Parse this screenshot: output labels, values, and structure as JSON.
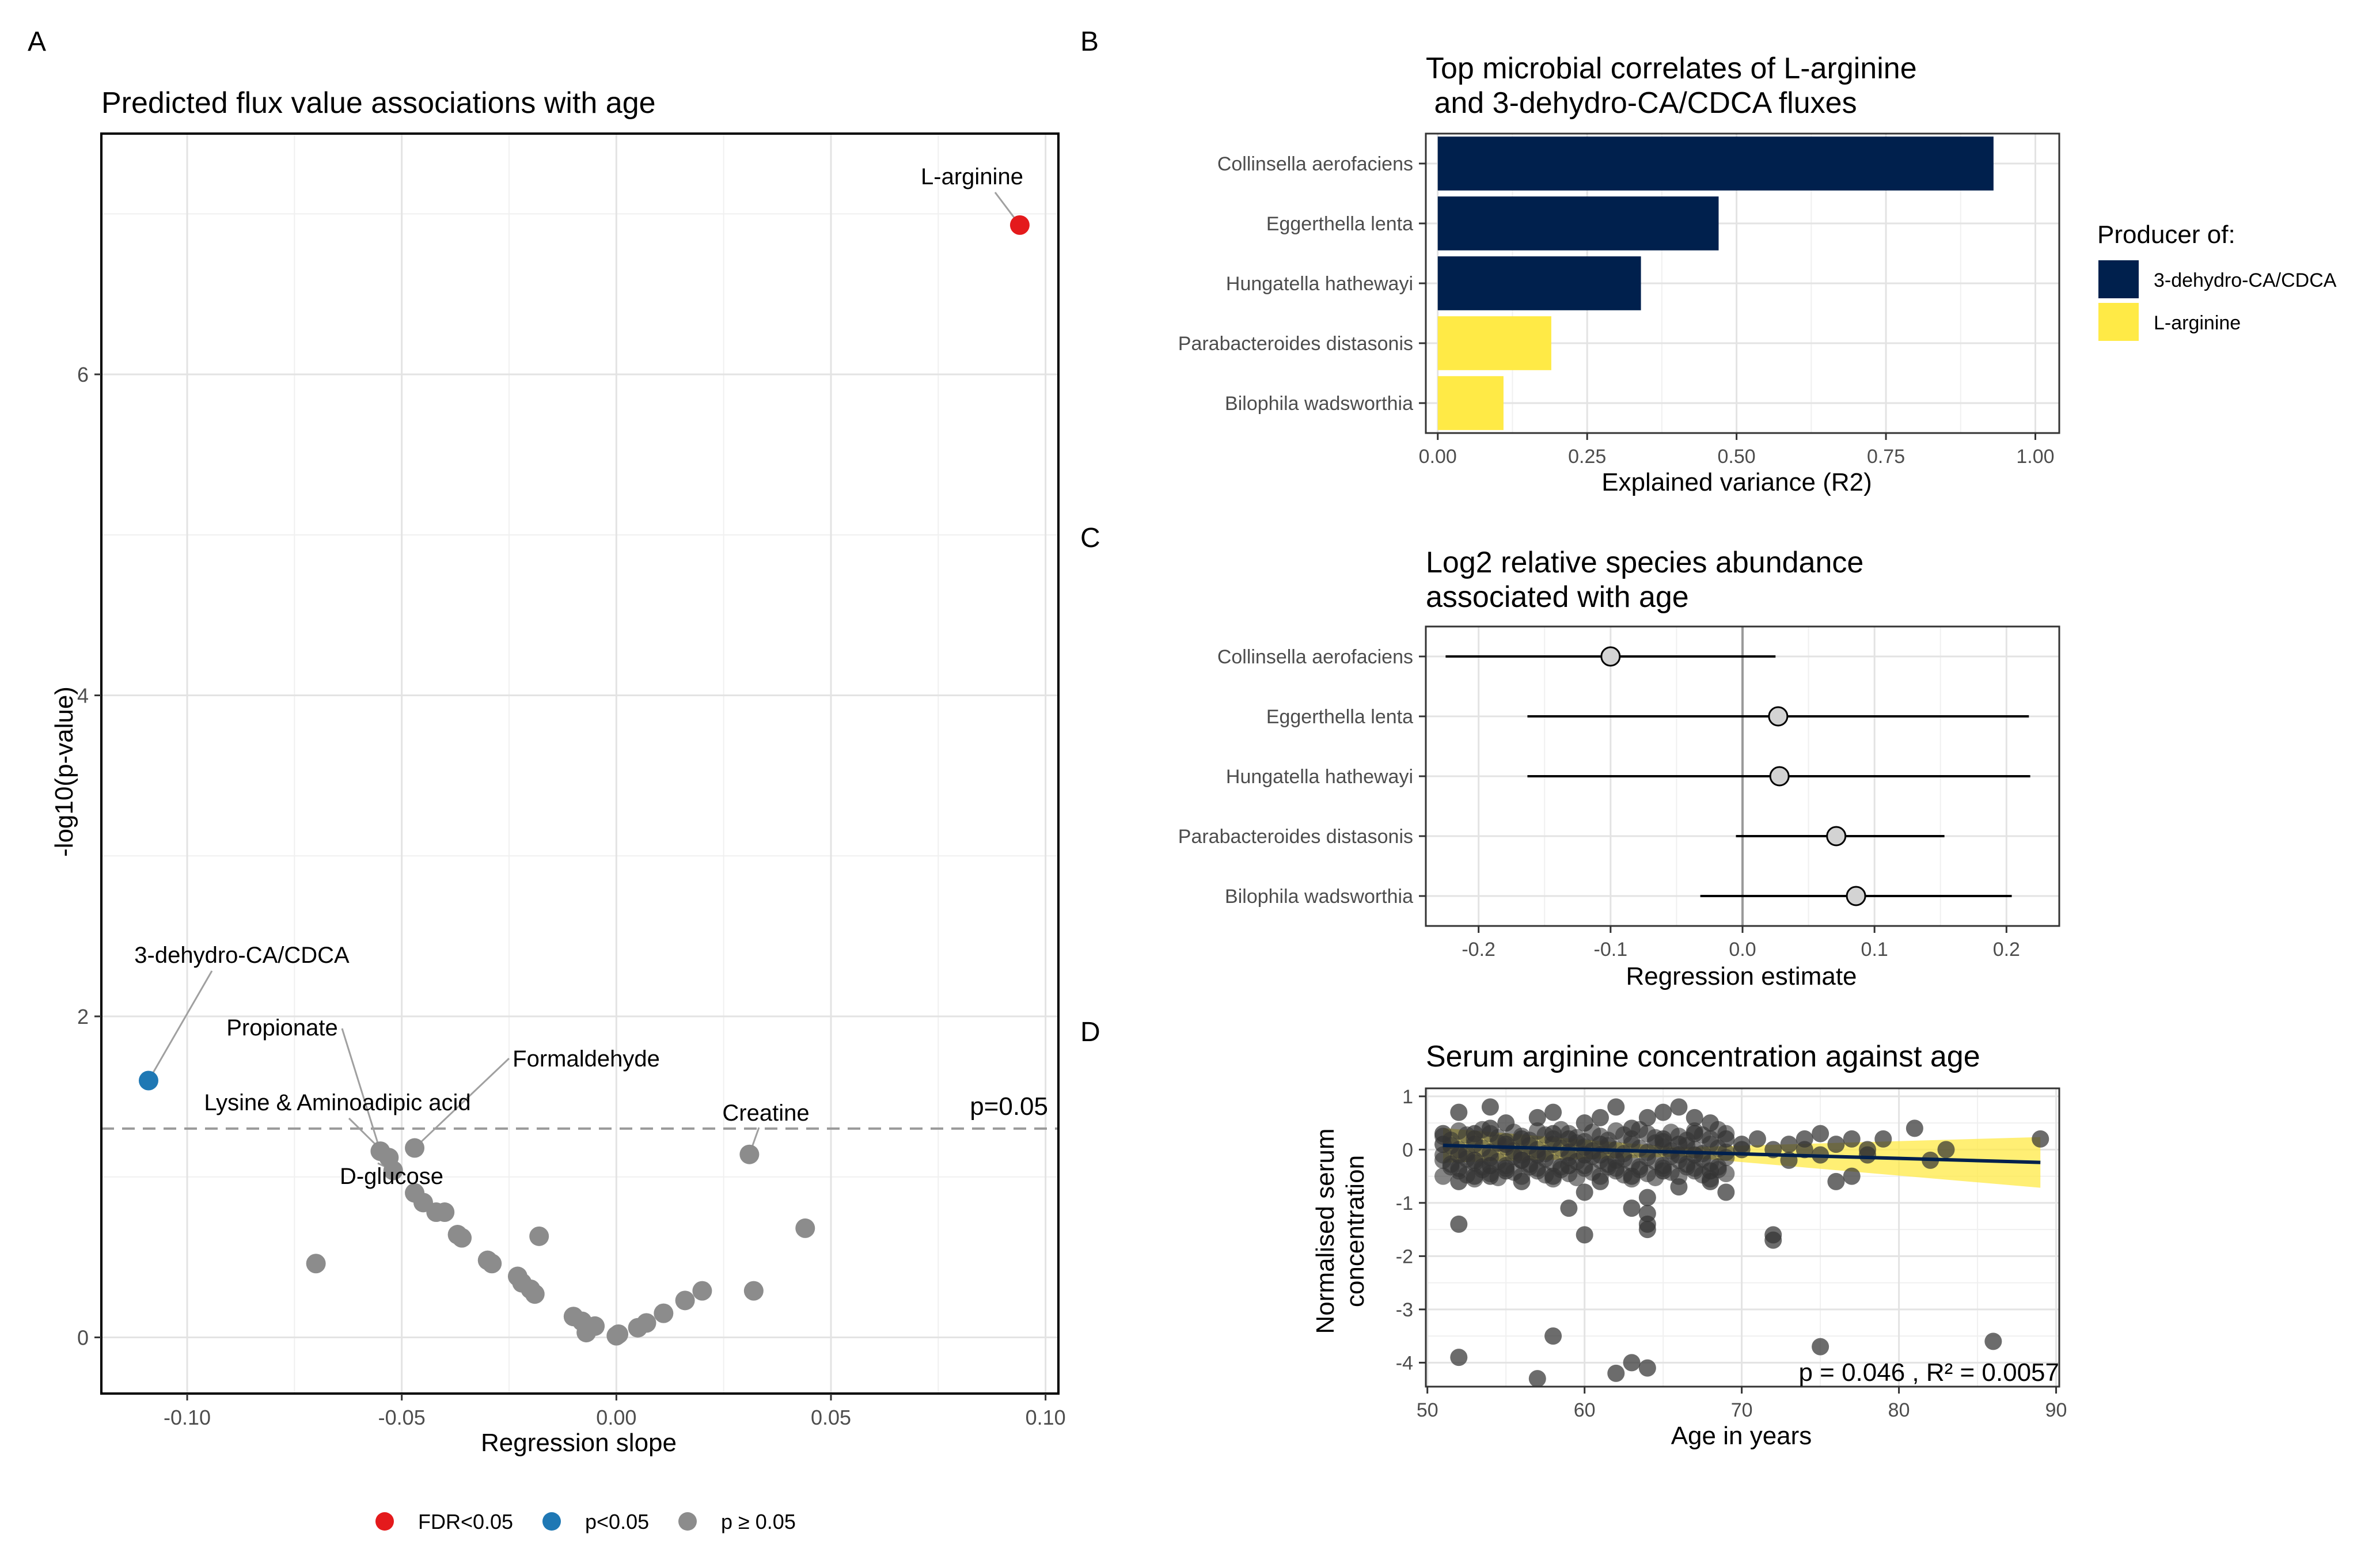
{
  "panels": {
    "A": "A",
    "B": "B",
    "C": "C",
    "D": "D"
  },
  "chart_data": [
    {
      "id": "A",
      "type": "scatter",
      "title": "Predicted flux value associations with age",
      "xlabel": "Regression slope",
      "ylabel": "-log10(p-value)",
      "xlim": [
        -0.12,
        0.103
      ],
      "ylim": [
        -0.35,
        7.5
      ],
      "xticks": [
        -0.1,
        -0.05,
        0.0,
        0.05,
        0.1
      ],
      "xtick_labels": [
        "-0.10",
        "-0.05",
        "0.00",
        "0.05",
        "0.10"
      ],
      "yticks": [
        0,
        2,
        4,
        6
      ],
      "ytick_labels": [
        "0",
        "2",
        "4",
        "6"
      ],
      "grid": true,
      "threshold": {
        "y": 1.301,
        "label": "p=0.05"
      },
      "colors": {
        "fdr": "#e41a1c",
        "p": "#1f78b4",
        "ns": "#8c8c8c"
      },
      "legend": {
        "position": "bottom",
        "items": [
          {
            "label": "FDR<0.05",
            "color": "#e41a1c"
          },
          {
            "label": "p<0.05",
            "color": "#1f78b4"
          },
          {
            "label": "p ≥ 0.05",
            "color": "#8c8c8c"
          }
        ]
      },
      "points": [
        {
          "x": 0.094,
          "y": 6.93,
          "group": "fdr",
          "label": "L-arginine"
        },
        {
          "x": -0.109,
          "y": 1.6,
          "group": "p",
          "label": "3-dehydro-CA/CDCA"
        },
        {
          "x": -0.055,
          "y": 1.16,
          "group": "ns",
          "label": "Propionate"
        },
        {
          "x": -0.047,
          "y": 1.18,
          "group": "ns",
          "label": "Formaldehyde"
        },
        {
          "x": -0.053,
          "y": 1.12,
          "group": "ns",
          "label": "Lysine & Aminoadipic acid"
        },
        {
          "x": -0.052,
          "y": 1.04,
          "group": "ns",
          "label": "D-glucose"
        },
        {
          "x": 0.031,
          "y": 1.14,
          "group": "ns",
          "label": "Creatine"
        },
        {
          "x": -0.07,
          "y": 0.46,
          "group": "ns"
        },
        {
          "x": -0.047,
          "y": 0.9,
          "group": "ns"
        },
        {
          "x": -0.045,
          "y": 0.84,
          "group": "ns"
        },
        {
          "x": -0.042,
          "y": 0.78,
          "group": "ns"
        },
        {
          "x": -0.04,
          "y": 0.78,
          "group": "ns"
        },
        {
          "x": -0.037,
          "y": 0.64,
          "group": "ns"
        },
        {
          "x": -0.036,
          "y": 0.62,
          "group": "ns"
        },
        {
          "x": -0.03,
          "y": 0.48,
          "group": "ns"
        },
        {
          "x": -0.029,
          "y": 0.46,
          "group": "ns"
        },
        {
          "x": -0.023,
          "y": 0.38,
          "group": "ns"
        },
        {
          "x": -0.022,
          "y": 0.34,
          "group": "ns"
        },
        {
          "x": -0.02,
          "y": 0.3,
          "group": "ns"
        },
        {
          "x": -0.019,
          "y": 0.27,
          "group": "ns"
        },
        {
          "x": -0.018,
          "y": 0.63,
          "group": "ns"
        },
        {
          "x": -0.01,
          "y": 0.13,
          "group": "ns"
        },
        {
          "x": -0.008,
          "y": 0.1,
          "group": "ns"
        },
        {
          "x": -0.007,
          "y": 0.03,
          "group": "ns"
        },
        {
          "x": -0.005,
          "y": 0.07,
          "group": "ns"
        },
        {
          "x": 0.0,
          "y": 0.01,
          "group": "ns"
        },
        {
          "x": 0.0005,
          "y": 0.02,
          "group": "ns"
        },
        {
          "x": 0.005,
          "y": 0.06,
          "group": "ns"
        },
        {
          "x": 0.007,
          "y": 0.09,
          "group": "ns"
        },
        {
          "x": 0.011,
          "y": 0.15,
          "group": "ns"
        },
        {
          "x": 0.016,
          "y": 0.23,
          "group": "ns"
        },
        {
          "x": 0.02,
          "y": 0.29,
          "group": "ns"
        },
        {
          "x": 0.032,
          "y": 0.29,
          "group": "ns"
        },
        {
          "x": 0.044,
          "y": 0.68,
          "group": "ns"
        }
      ]
    },
    {
      "id": "B",
      "type": "bar",
      "orientation": "horizontal",
      "title": [
        "Top microbial correlates of L-arginine",
        " and 3-dehydro-CA/CDCA fluxes"
      ],
      "xlabel": "Explained variance (R2)",
      "xlim": [
        -0.02,
        1.04
      ],
      "xticks": [
        0.0,
        0.25,
        0.5,
        0.75,
        1.0
      ],
      "xtick_labels": [
        "0.00",
        "0.25",
        "0.50",
        "0.75",
        "1.00"
      ],
      "categories": [
        "Collinsella aerofaciens",
        "Eggerthella lenta",
        "Hungatella hathewayi",
        "Parabacteroides distasonis",
        "Bilophila wadsworthia"
      ],
      "values": [
        0.93,
        0.47,
        0.34,
        0.19,
        0.11
      ],
      "groups": [
        "3-dehydro-CA/CDCA",
        "3-dehydro-CA/CDCA",
        "3-dehydro-CA/CDCA",
        "L-arginine",
        "L-arginine"
      ],
      "colors": {
        "3-dehydro-CA/CDCA": "#00204d",
        "L-arginine": "#ffea46"
      },
      "legend": {
        "title": "Producer of:",
        "position": "right",
        "items": [
          {
            "label": "3-dehydro-CA/CDCA",
            "color": "#00204d"
          },
          {
            "label": "L-arginine",
            "color": "#ffea46"
          }
        ]
      },
      "grid": true
    },
    {
      "id": "C",
      "type": "scatter",
      "subtype": "forest",
      "title": [
        "Log2 relative species abundance",
        "associated with age"
      ],
      "xlabel": "Regression estimate",
      "xlim": [
        -0.24,
        0.24
      ],
      "xticks": [
        -0.2,
        -0.1,
        0.0,
        0.1,
        0.2
      ],
      "xtick_labels": [
        "-0.2",
        "-0.1",
        "0.0",
        "0.1",
        "0.2"
      ],
      "categories": [
        "Collinsella aerofaciens",
        "Eggerthella lenta",
        "Hungatella hathewayi",
        "Parabacteroides distasonis",
        "Bilophila wadsworthia"
      ],
      "estimates": [
        -0.1,
        0.027,
        0.028,
        0.071,
        0.086
      ],
      "lower": [
        -0.225,
        -0.163,
        -0.163,
        -0.005,
        -0.032
      ],
      "upper": [
        0.025,
        0.217,
        0.218,
        0.153,
        0.204
      ],
      "reference_line": 0,
      "grid": true
    },
    {
      "id": "D",
      "type": "scatter",
      "title": "Serum arginine concentration against age",
      "xlabel": "Age in years",
      "ylabel": [
        "Normalised serum",
        "concentration"
      ],
      "xlim": [
        49.9,
        90.2
      ],
      "ylim": [
        -4.45,
        1.15
      ],
      "xticks": [
        50,
        60,
        70,
        80,
        90
      ],
      "xtick_labels": [
        "50",
        "60",
        "70",
        "80",
        "90"
      ],
      "yticks": [
        1,
        0,
        -1,
        -2,
        -3,
        -4
      ],
      "ytick_labels": [
        "1",
        "0",
        "-1",
        "-2",
        "-3",
        "-4"
      ],
      "annotation": "p = 0.046 , R² = 0.0057",
      "fit": {
        "x": [
          51,
          89
        ],
        "y": [
          0.08,
          -0.24
        ],
        "color": "#00204d",
        "band_color": "#ffea46"
      },
      "grid": true,
      "points": [
        [
          51,
          0.3
        ],
        [
          51,
          0.1
        ],
        [
          52,
          0.7
        ],
        [
          52,
          -0.1
        ],
        [
          52,
          -0.6
        ],
        [
          52,
          -1.4
        ],
        [
          52,
          -3.9
        ],
        [
          53,
          0.3
        ],
        [
          53,
          -0.2
        ],
        [
          53,
          -0.5
        ],
        [
          54,
          0.8
        ],
        [
          54,
          0.4
        ],
        [
          54,
          -0.3
        ],
        [
          54,
          -0.5
        ],
        [
          55,
          0.5
        ],
        [
          55,
          0.1
        ],
        [
          55,
          -0.4
        ],
        [
          56,
          0.2
        ],
        [
          56,
          -0.6
        ],
        [
          56,
          -0.2
        ],
        [
          57,
          0.6
        ],
        [
          57,
          -4.3
        ],
        [
          57,
          -0.1
        ],
        [
          58,
          0.7
        ],
        [
          58,
          0.3
        ],
        [
          58,
          -3.5
        ],
        [
          58,
          -0.5
        ],
        [
          59,
          0.2
        ],
        [
          59,
          -1.1
        ],
        [
          59,
          -0.3
        ],
        [
          60,
          0.5
        ],
        [
          60,
          -0.8
        ],
        [
          60,
          -1.6
        ],
        [
          60,
          -0.1
        ],
        [
          61,
          0.6
        ],
        [
          61,
          0.1
        ],
        [
          61,
          -0.6
        ],
        [
          62,
          0.8
        ],
        [
          62,
          -4.2
        ],
        [
          62,
          -0.2
        ],
        [
          63,
          0.4
        ],
        [
          63,
          -4.0
        ],
        [
          63,
          -1.1
        ],
        [
          63,
          -0.5
        ],
        [
          64,
          0.6
        ],
        [
          64,
          -1.4
        ],
        [
          64,
          -1.2
        ],
        [
          64,
          -1.5
        ],
        [
          64,
          -4.1
        ],
        [
          64,
          -0.9
        ],
        [
          65,
          0.7
        ],
        [
          65,
          0.2
        ],
        [
          65,
          -0.4
        ],
        [
          66,
          0.8
        ],
        [
          66,
          0.1
        ],
        [
          66,
          -0.7
        ],
        [
          67,
          0.6
        ],
        [
          67,
          0.3
        ],
        [
          67,
          -0.1
        ],
        [
          68,
          0.5
        ],
        [
          68,
          -0.4
        ],
        [
          68,
          -0.6
        ],
        [
          69,
          0.2
        ],
        [
          69,
          -0.8
        ],
        [
          70,
          0.1
        ],
        [
          70,
          0.0
        ],
        [
          71,
          0.2
        ],
        [
          72,
          0.0
        ],
        [
          72,
          -1.6
        ],
        [
          72,
          -1.7
        ],
        [
          73,
          0.1
        ],
        [
          73,
          -0.2
        ],
        [
          74,
          0.2
        ],
        [
          74,
          0.0
        ],
        [
          75,
          0.3
        ],
        [
          75,
          -0.1
        ],
        [
          75,
          -3.7
        ],
        [
          76,
          -0.6
        ],
        [
          76,
          0.1
        ],
        [
          77,
          0.2
        ],
        [
          77,
          -0.5
        ],
        [
          78,
          0.0
        ],
        [
          78,
          -0.1
        ],
        [
          79,
          0.2
        ],
        [
          81,
          0.4
        ],
        [
          82,
          -0.2
        ],
        [
          83,
          0.0
        ],
        [
          86,
          -3.6
        ],
        [
          89,
          0.2
        ]
      ]
    }
  ]
}
